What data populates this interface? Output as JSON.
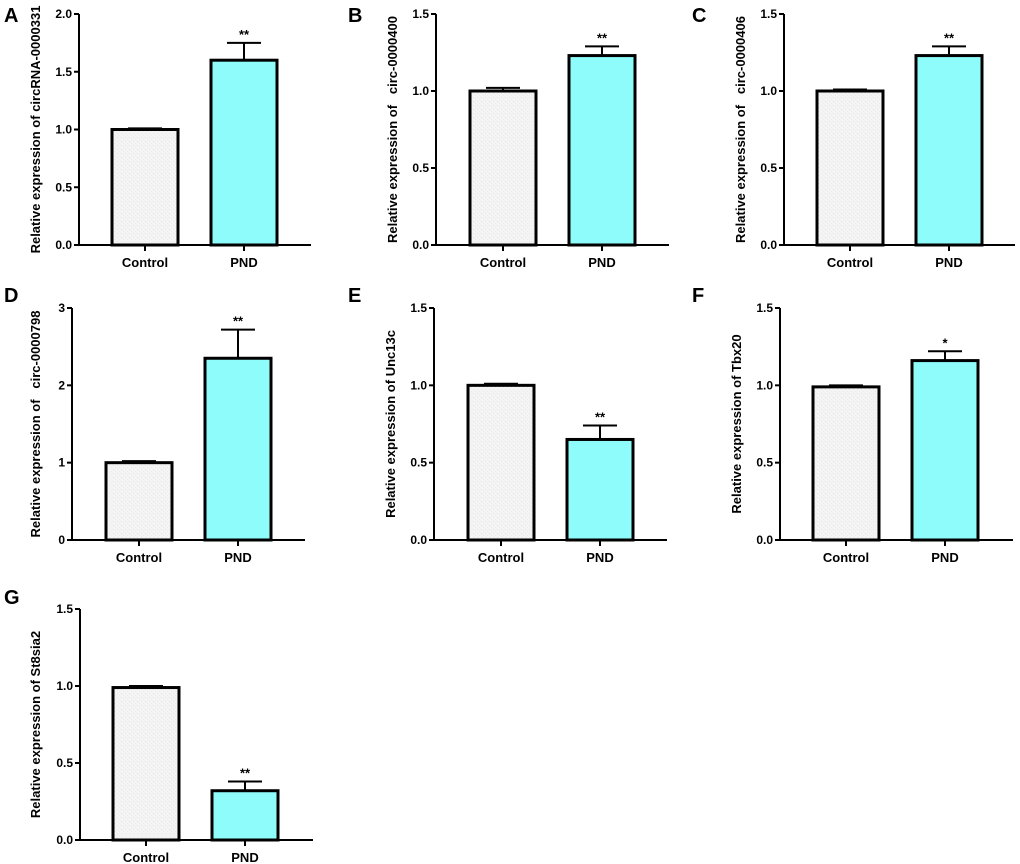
{
  "figure": {
    "bar_colors": {
      "Control": "#f4f4f4",
      "PND": "#8ffcfc"
    },
    "outline_color": "#000000"
  },
  "chart_data": [
    {
      "panel": "A",
      "type": "bar",
      "title": "",
      "xlabel": "",
      "ylabel": "Relative expression of circRNA-0000331",
      "categories": [
        "Control",
        "PND"
      ],
      "values": [
        1.0,
        1.6
      ],
      "error_upper": [
        1.01,
        1.75
      ],
      "significance": [
        "",
        "**"
      ],
      "ylim": [
        0,
        2.0
      ],
      "yticks": [
        0.0,
        0.5,
        1.0,
        1.5,
        2.0
      ],
      "ytick_labels": [
        "0.0",
        "0.5",
        "1.0",
        "1.5",
        "2.0"
      ],
      "grid": false
    },
    {
      "panel": "B",
      "type": "bar",
      "title": "",
      "xlabel": "",
      "ylabel": "Relative expression of   circ-0000400",
      "categories": [
        "Control",
        "PND"
      ],
      "values": [
        1.0,
        1.23
      ],
      "error_upper": [
        1.02,
        1.29
      ],
      "significance": [
        "",
        "**"
      ],
      "ylim": [
        0,
        1.5
      ],
      "yticks": [
        0.0,
        0.5,
        1.0,
        1.5
      ],
      "ytick_labels": [
        "0.0",
        "0.5",
        "1.0",
        "1.5"
      ],
      "grid": false
    },
    {
      "panel": "C",
      "type": "bar",
      "title": "",
      "xlabel": "",
      "ylabel": "Relative expression of   circ-0000406",
      "categories": [
        "Control",
        "PND"
      ],
      "values": [
        1.0,
        1.23
      ],
      "error_upper": [
        1.01,
        1.29
      ],
      "significance": [
        "",
        "**"
      ],
      "ylim": [
        0,
        1.5
      ],
      "yticks": [
        0.0,
        0.5,
        1.0,
        1.5
      ],
      "ytick_labels": [
        "0.0",
        "0.5",
        "1.0",
        "1.5"
      ],
      "grid": false
    },
    {
      "panel": "D",
      "type": "bar",
      "title": "",
      "xlabel": "",
      "ylabel": "Relative expression of   circ-0000798",
      "categories": [
        "Control",
        "PND"
      ],
      "values": [
        1.0,
        2.35
      ],
      "error_upper": [
        1.02,
        2.72
      ],
      "significance": [
        "",
        "**"
      ],
      "ylim": [
        0,
        3
      ],
      "yticks": [
        0,
        1,
        2,
        3
      ],
      "ytick_labels": [
        "0",
        "1",
        "2",
        "3"
      ],
      "grid": false
    },
    {
      "panel": "E",
      "type": "bar",
      "title": "",
      "xlabel": "",
      "ylabel": "Relative expression of Unc13c",
      "categories": [
        "Control",
        "PND"
      ],
      "values": [
        1.0,
        0.65
      ],
      "error_upper": [
        1.01,
        0.74
      ],
      "significance": [
        "",
        "**"
      ],
      "ylim": [
        0,
        1.5
      ],
      "yticks": [
        0.0,
        0.5,
        1.0,
        1.5
      ],
      "ytick_labels": [
        "0.0",
        "0.5",
        "1.0",
        "1.5"
      ],
      "grid": false
    },
    {
      "panel": "F",
      "type": "bar",
      "title": "",
      "xlabel": "",
      "ylabel": "Relative expression of Tbx20",
      "categories": [
        "Control",
        "PND"
      ],
      "values": [
        0.99,
        1.16
      ],
      "error_upper": [
        1.0,
        1.22
      ],
      "significance": [
        "",
        "*"
      ],
      "ylim": [
        0,
        1.5
      ],
      "yticks": [
        0.0,
        0.5,
        1.0,
        1.5
      ],
      "ytick_labels": [
        "0.0",
        "0.5",
        "1.0",
        "1.5"
      ],
      "grid": false
    },
    {
      "panel": "G",
      "type": "bar",
      "title": "",
      "xlabel": "",
      "ylabel": "Relative expression of St8sia2",
      "categories": [
        "Control",
        "PND"
      ],
      "values": [
        0.99,
        0.32
      ],
      "error_upper": [
        1.0,
        0.38
      ],
      "significance": [
        "",
        "**"
      ],
      "ylim": [
        0,
        1.5
      ],
      "yticks": [
        0.0,
        0.5,
        1.0,
        1.5
      ],
      "ytick_labels": [
        "0.0",
        "0.5",
        "1.0",
        "1.5"
      ],
      "grid": false
    }
  ]
}
